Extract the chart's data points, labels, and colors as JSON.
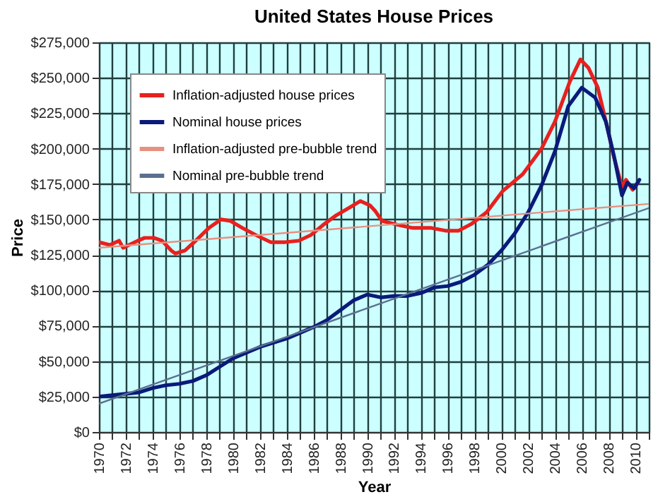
{
  "chart_data": {
    "type": "line",
    "title": "United States House Prices",
    "xlabel": "Year",
    "ylabel": "Price",
    "xlim": [
      1970,
      2011
    ],
    "ylim": [
      0,
      275000
    ],
    "xticks": [
      1970,
      {
        "value": 1971,
        "label": null
      },
      1972,
      {
        "value": 1973,
        "label": null
      },
      1974,
      {
        "value": 1975,
        "label": null
      },
      1976,
      {
        "value": 1977,
        "label": null
      },
      1978,
      {
        "value": 1979,
        "label": null
      },
      1980,
      {
        "value": 1981,
        "label": null
      },
      1982,
      {
        "value": 1983,
        "label": null
      },
      1984,
      {
        "value": 1985,
        "label": null
      },
      1986,
      {
        "value": 1987,
        "label": null
      },
      1988,
      {
        "value": 1989,
        "label": null
      },
      1990,
      {
        "value": 1991,
        "label": null
      },
      1992,
      {
        "value": 1993,
        "label": null
      },
      1994,
      {
        "value": 1995,
        "label": null
      },
      1996,
      {
        "value": 1997,
        "label": null
      },
      1998,
      {
        "value": 1999,
        "label": null
      },
      2000,
      {
        "value": 2001,
        "label": null
      },
      2002,
      {
        "value": 2003,
        "label": null
      },
      2004,
      {
        "value": 2005,
        "label": null
      },
      2006,
      {
        "value": 2007,
        "label": null
      },
      2008,
      {
        "value": 2009,
        "label": null
      },
      2010,
      {
        "value": 2011,
        "label": null
      }
    ],
    "yticks": [
      {
        "value": 0,
        "label": "$0"
      },
      {
        "value": 25000,
        "label": "$25,000"
      },
      {
        "value": 50000,
        "label": "$50,000"
      },
      {
        "value": 75000,
        "label": "$75,000"
      },
      {
        "value": 100000,
        "label": "$100,000"
      },
      {
        "value": 125000,
        "label": "$125,000"
      },
      {
        "value": 150000,
        "label": "$150,000"
      },
      {
        "value": 175000,
        "label": "$175,000"
      },
      {
        "value": 200000,
        "label": "$200,000"
      },
      {
        "value": 225000,
        "label": "$225,000"
      },
      {
        "value": 250000,
        "label": "$250,000"
      },
      {
        "value": 275000,
        "label": "$275,000"
      }
    ],
    "grid": true,
    "legend": "top left",
    "marker": "none",
    "line_style": "solid",
    "series": [
      {
        "name": "Inflation-adjusted house prices",
        "color": "#e8201e",
        "x": [
          1970,
          1970.8,
          1971.5,
          1971.8,
          1972.9,
          1973.4,
          1974.1,
          1974.7,
          1975.4,
          1975.7,
          1976.4,
          1977.1,
          1978.2,
          1979.1,
          1979.8,
          1980.7,
          1981.7,
          1982.8,
          1983.9,
          1984.9,
          1985.8,
          1986.7,
          1987.7,
          1988.8,
          1989.5,
          1990.2,
          1990.6,
          1991.1,
          1992.4,
          1993.4,
          1994.8,
          1995.9,
          1996.8,
          1997.8,
          1998.9,
          2000.1,
          2001.6,
          2003,
          2004,
          2005.1,
          2005.9,
          2006.5,
          2007.2,
          2007.9,
          2008.4,
          2009,
          2009.3,
          2009.8,
          2010.2
        ],
        "values": [
          134000,
          132000,
          135000,
          130000,
          135000,
          137000,
          137000,
          135000,
          128000,
          126000,
          128000,
          134000,
          144000,
          150000,
          149000,
          144000,
          139000,
          134000,
          134000,
          135000,
          139000,
          146000,
          153000,
          159000,
          163000,
          160000,
          156000,
          149000,
          146000,
          144000,
          144000,
          142000,
          142000,
          147000,
          155000,
          170000,
          182000,
          200000,
          219000,
          247000,
          263000,
          257000,
          243000,
          215000,
          194000,
          173000,
          178000,
          171000,
          176000
        ]
      },
      {
        "name": "Nominal house prices",
        "color": "#0a1a7a",
        "x": [
          1970,
          1971,
          1972,
          1973,
          1974,
          1975,
          1976,
          1977,
          1978,
          1979,
          1980,
          1981,
          1982,
          1983,
          1984,
          1985,
          1986,
          1987,
          1988,
          1989,
          1990,
          1991,
          1992,
          1993,
          1994,
          1995,
          1996,
          1997,
          1998,
          1999,
          2000,
          2001,
          2002,
          2003,
          2004,
          2005,
          2006,
          2007,
          2007.8,
          2008.4,
          2009,
          2009.4,
          2009.9,
          2010.3
        ],
        "values": [
          25000,
          26000,
          27000,
          28000,
          31000,
          33000,
          34000,
          36000,
          40000,
          46000,
          52000,
          56000,
          60000,
          63000,
          66000,
          70000,
          74000,
          79000,
          86000,
          93000,
          97000,
          95000,
          96000,
          96000,
          98000,
          102000,
          103000,
          106000,
          111000,
          118000,
          128000,
          140000,
          155000,
          174000,
          198000,
          230000,
          243000,
          236000,
          219000,
          195000,
          167000,
          176000,
          172000,
          178000
        ]
      },
      {
        "name": "Inflation-adjusted pre-bubble trend",
        "color": "#e89080",
        "x": [
          1970,
          2011
        ],
        "values": [
          130000,
          161000
        ]
      },
      {
        "name": "Nominal pre-bubble trend",
        "color": "#5a7090",
        "x": [
          1970,
          2011
        ],
        "values": [
          20000,
          158000
        ]
      }
    ]
  }
}
